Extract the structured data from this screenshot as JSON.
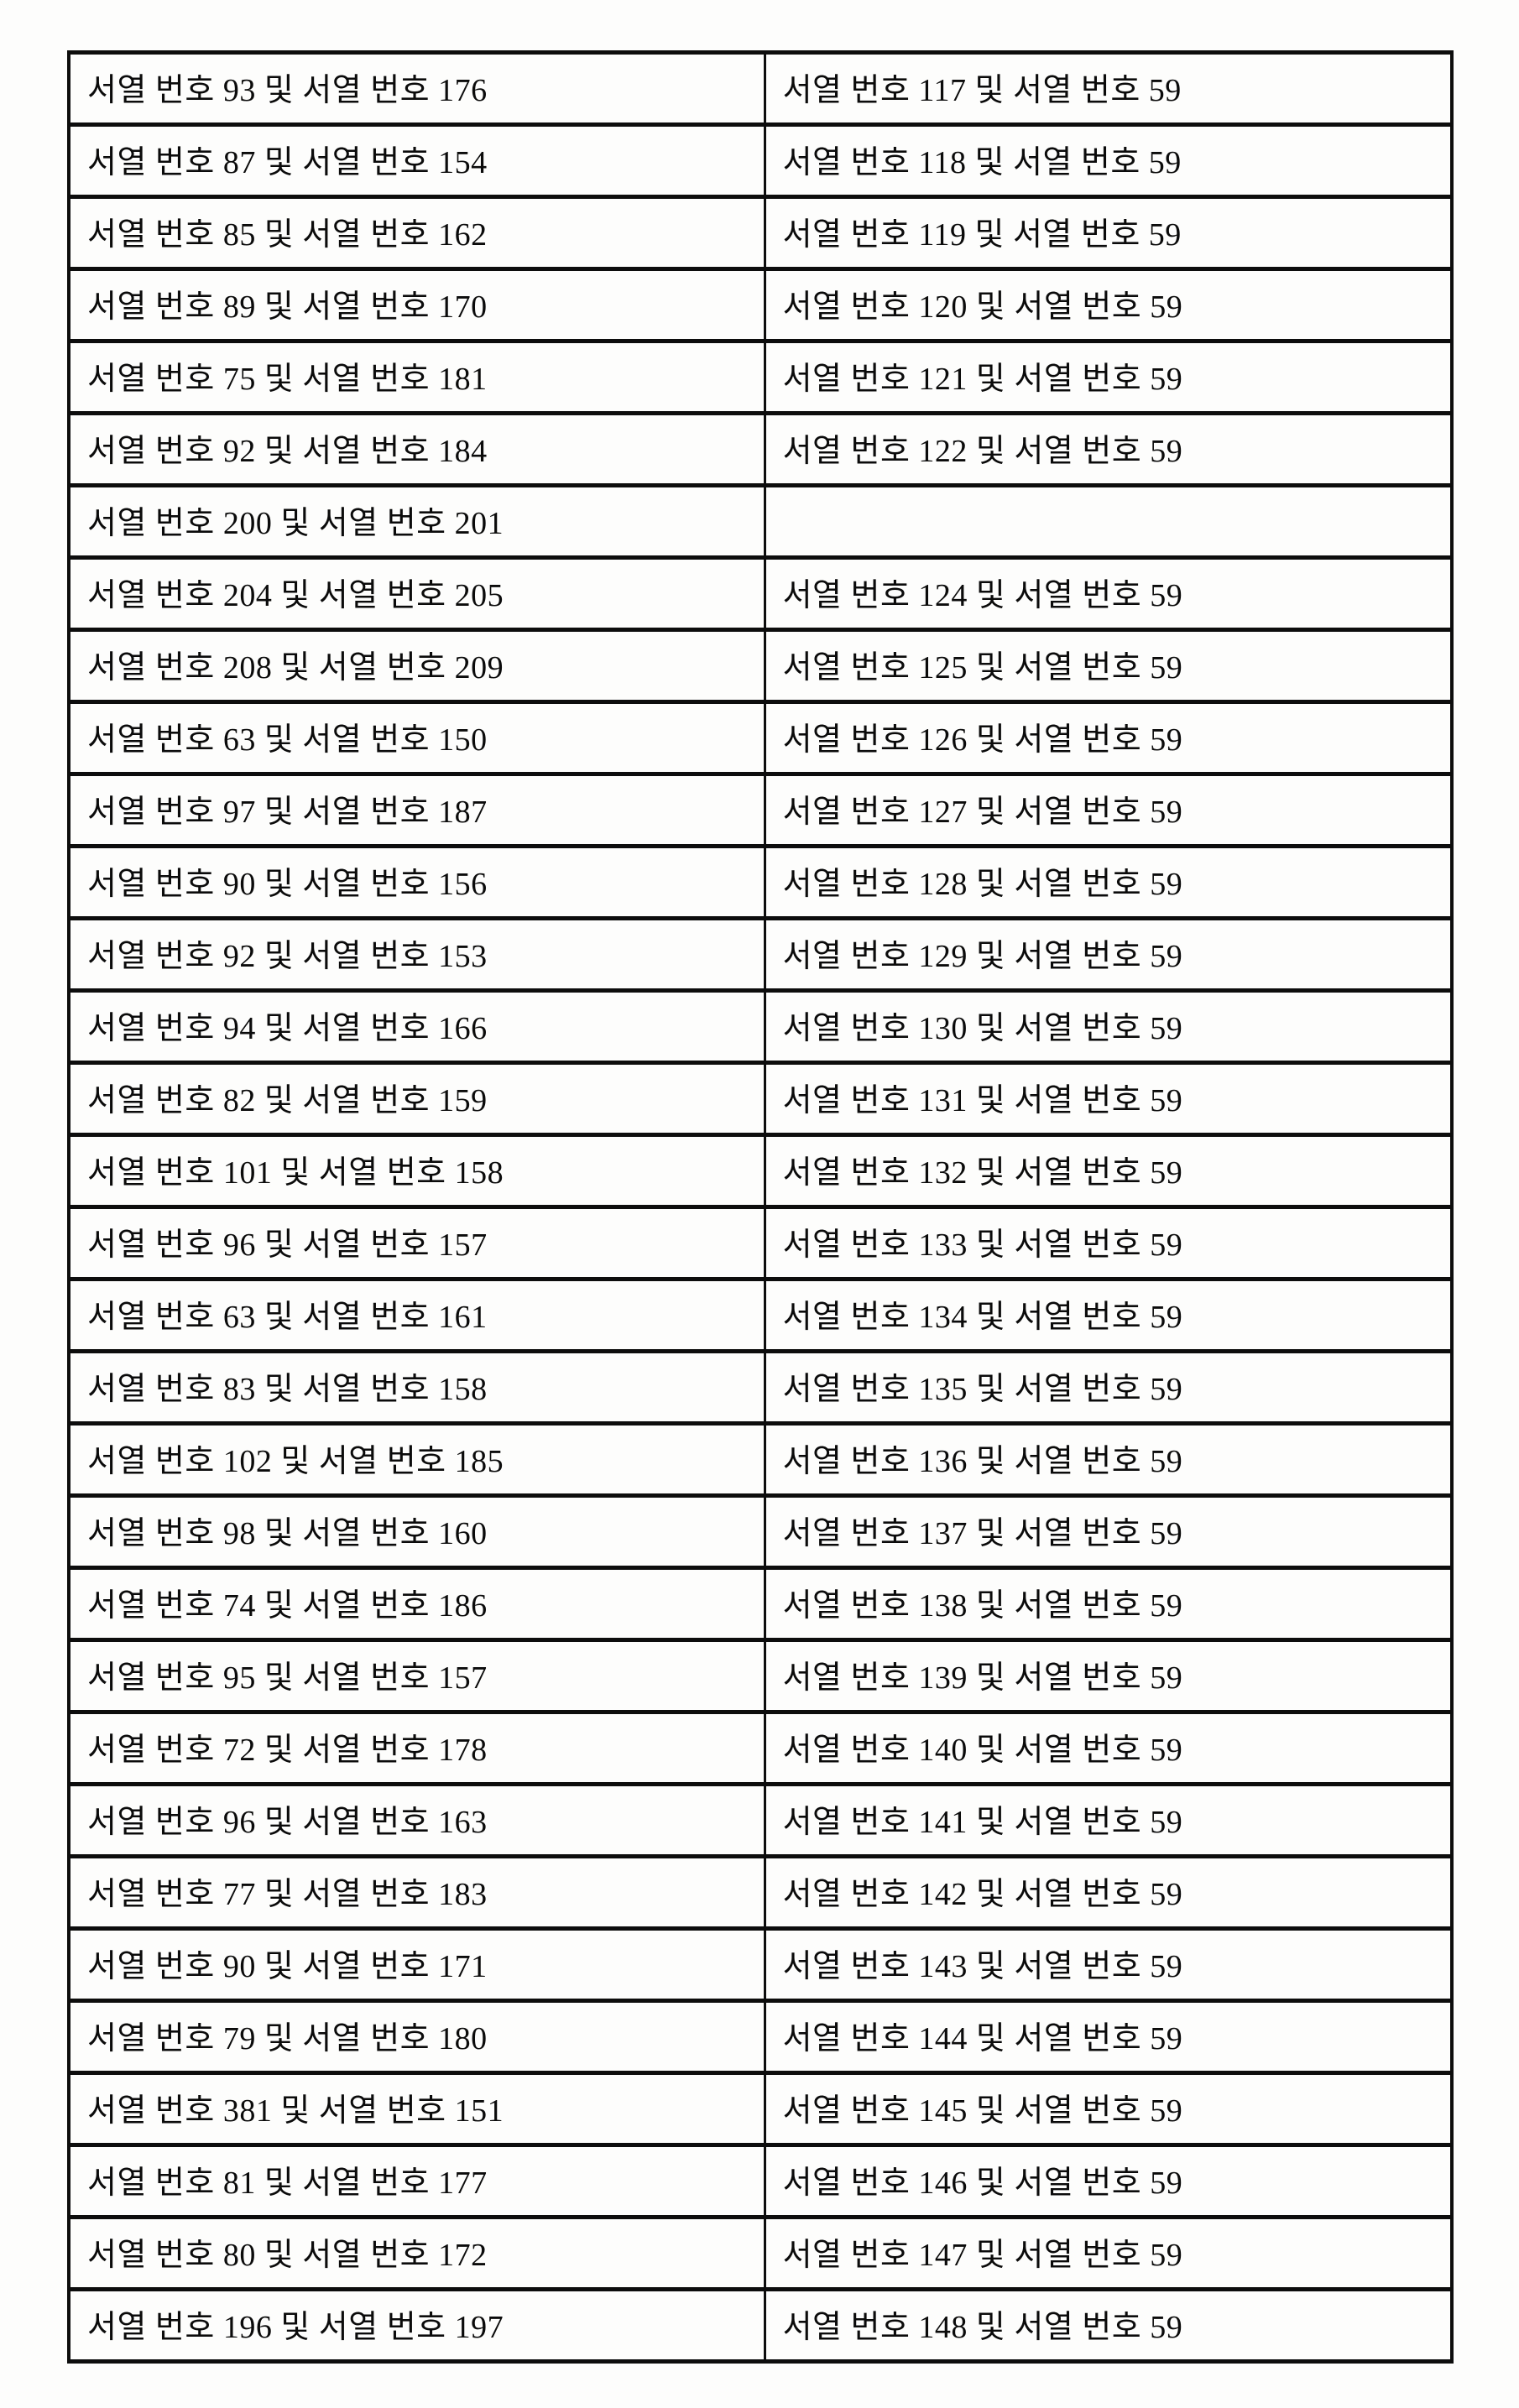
{
  "document": {
    "type": "scanned-patent-table-page",
    "language": "Korean",
    "background_color": "#fdfdfc",
    "border_color": "#0d0d0d",
    "text_color": "#0b0b0b"
  },
  "table": {
    "columns": 2,
    "row_count": 32,
    "rows": [
      {
        "left": "서열 번호 93 및 서열 번호 176",
        "right": "서열 번호 117 및 서열 번호 59"
      },
      {
        "left": "서열 번호 87 및 서열 번호 154",
        "right": "서열 번호 118 및 서열 번호 59"
      },
      {
        "left": "서열 번호 85 및 서열 번호 162",
        "right": "서열 번호 119 및 서열 번호 59"
      },
      {
        "left": "서열 번호 89 및 서열 번호 170",
        "right": "서열 번호 120 및 서열 번호 59"
      },
      {
        "left": "서열 번호 75 및 서열 번호 181",
        "right": "서열 번호 121 및 서열 번호 59"
      },
      {
        "left": "서열 번호 92 및 서열 번호 184",
        "right": "서열 번호 122 및 서열 번호 59"
      },
      {
        "left": "서열 번호 200 및 서열 번호 201",
        "right": ""
      },
      {
        "left": "서열 번호 204 및 서열 번호 205",
        "right": "서열 번호 124 및 서열 번호 59"
      },
      {
        "left": "서열 번호 208 및 서열 번호 209",
        "right": "서열 번호 125 및 서열 번호 59"
      },
      {
        "left": "서열 번호 63 및 서열 번호 150",
        "right": "서열 번호 126 및 서열 번호 59"
      },
      {
        "left": "서열 번호 97 및 서열 번호 187",
        "right": "서열 번호 127 및 서열 번호 59"
      },
      {
        "left": "서열 번호 90 및 서열 번호 156",
        "right": "서열 번호 128 및 서열 번호 59"
      },
      {
        "left": "서열 번호 92 및 서열 번호 153",
        "right": "서열 번호 129 및 서열 번호 59"
      },
      {
        "left": "서열 번호 94 및 서열 번호 166",
        "right": "서열 번호 130 및 서열 번호 59"
      },
      {
        "left": "서열 번호 82 및 서열 번호 159",
        "right": "서열 번호 131 및 서열 번호 59"
      },
      {
        "left": "서열 번호 101 및 서열 번호 158",
        "right": "서열 번호 132 및 서열 번호 59"
      },
      {
        "left": "서열 번호 96 및 서열 번호 157",
        "right": "서열 번호 133 및 서열 번호 59"
      },
      {
        "left": "서열 번호 63 및 서열 번호 161",
        "right": "서열 번호 134 및 서열 번호 59"
      },
      {
        "left": "서열 번호 83 및 서열 번호 158",
        "right": "서열 번호 135 및 서열 번호 59"
      },
      {
        "left": "서열 번호 102 및 서열 번호 185",
        "right": "서열 번호 136 및 서열 번호 59"
      },
      {
        "left": "서열 번호 98 및 서열 번호 160",
        "right": "서열 번호 137 및 서열 번호 59"
      },
      {
        "left": "서열 번호 74 및 서열 번호 186",
        "right": "서열 번호 138 및 서열 번호 59"
      },
      {
        "left": "서열 번호 95 및 서열 번호 157",
        "right": "서열 번호 139 및 서열 번호 59"
      },
      {
        "left": "서열 번호 72 및 서열 번호 178",
        "right": "서열 번호 140 및 서열 번호 59"
      },
      {
        "left": "서열 번호 96 및 서열 번호 163",
        "right": "서열 번호 141 및 서열 번호 59"
      },
      {
        "left": "서열 번호 77 및 서열 번호 183",
        "right": "서열 번호 142 및 서열 번호 59"
      },
      {
        "left": "서열 번호 90 및 서열 번호 171",
        "right": "서열 번호 143 및 서열 번호 59"
      },
      {
        "left": "서열 번호 79 및 서열 번호 180",
        "right": "서열 번호 144 및 서열 번호 59"
      },
      {
        "left": "서열 번호 381 및 서열 번호 151",
        "right": "서열 번호 145 및 서열 번호 59"
      },
      {
        "left": "서열 번호 81 및 서열 번호 177",
        "right": "서열 번호 146 및 서열 번호 59"
      },
      {
        "left": "서열 번호 80 및 서열 번호 172",
        "right": "서열 번호 147 및 서열 번호 59"
      },
      {
        "left": "서열 번호 196 및 서열 번호 197",
        "right": "서열 번호 148 및 서열 번호 59"
      }
    ]
  }
}
